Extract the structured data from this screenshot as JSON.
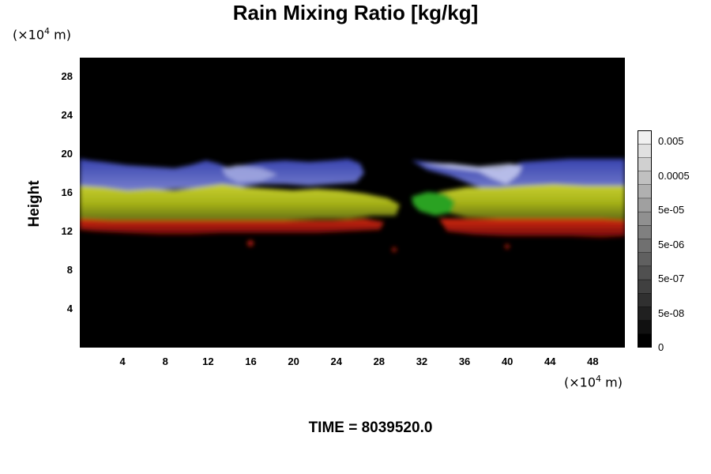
{
  "chart_data": {
    "type": "heatmap",
    "title": "Rain Mixing Ratio [kg/kg]",
    "ylabel": "Height",
    "y_unit": {
      "prefix": "(×10",
      "exp": "4",
      "suffix": " m)"
    },
    "x_unit": {
      "prefix": "(×10",
      "exp": "4",
      "suffix": " m)"
    },
    "xticks": [
      4,
      8,
      12,
      16,
      20,
      24,
      28,
      32,
      36,
      40,
      44,
      48
    ],
    "yticks": [
      4,
      8,
      12,
      16,
      20,
      24,
      28
    ],
    "xlim": [
      0,
      51
    ],
    "ylim": [
      0,
      30
    ],
    "colorbar": {
      "labels": [
        "0.005",
        "0.0005",
        "5e-05",
        "5e-06",
        "5e-07",
        "5e-08",
        "0"
      ],
      "levels": 16
    },
    "bands": [
      {
        "color": "#4a55c8",
        "top": 19.5,
        "bottom": 16.5
      },
      {
        "color": "#b8c426",
        "top": 16.5,
        "bottom": 13.5
      },
      {
        "color": "#c01a10",
        "top": 13.5,
        "bottom": 11.5
      }
    ],
    "footer": "TIME = 8039520.0"
  }
}
